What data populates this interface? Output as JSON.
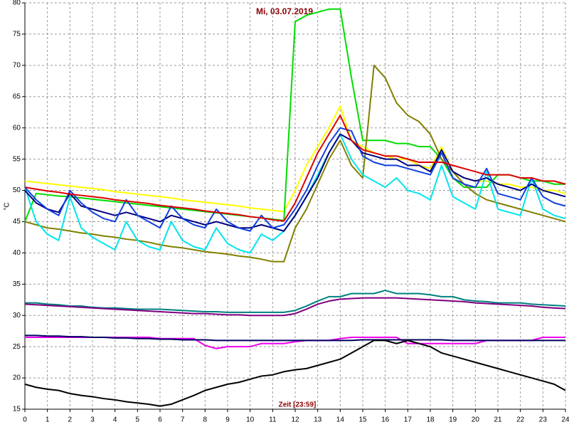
{
  "chart_data": {
    "type": "line",
    "title": "Mi, 03.07.2019",
    "y_label": "°C",
    "x_label": "Zeit [23:59]",
    "xlim": [
      0,
      24
    ],
    "xticks": [
      0,
      1,
      2,
      3,
      4,
      5,
      6,
      7,
      8,
      9,
      10,
      11,
      12,
      13,
      14,
      15,
      16,
      17,
      18,
      19,
      20,
      21,
      22,
      23,
      24
    ],
    "ylim": [
      15,
      80
    ],
    "yticks": [
      15,
      20,
      25,
      30,
      35,
      40,
      45,
      50,
      55,
      60,
      65,
      70,
      75,
      80
    ],
    "grid": true,
    "x": [
      0,
      0.5,
      1,
      1.5,
      2,
      2.5,
      3,
      3.5,
      4,
      4.5,
      5,
      5.5,
      6,
      6.5,
      7,
      7.5,
      8,
      8.5,
      9,
      9.5,
      10,
      10.5,
      11,
      11.5,
      12,
      12.5,
      13,
      13.5,
      14,
      14.5,
      15,
      15.5,
      16,
      16.5,
      17,
      17.5,
      18,
      18.5,
      19,
      19.5,
      20,
      20.5,
      21,
      21.5,
      22,
      22.5,
      23,
      23.5,
      24
    ],
    "series": [
      {
        "color": "#ffff00",
        "values": [
          51.5,
          51.3,
          51.1,
          50.9,
          50.7,
          50.5,
          50.3,
          50.1,
          49.8,
          49.6,
          49.4,
          49.2,
          49,
          48.8,
          48.5,
          48.3,
          48.1,
          47.9,
          47.7,
          47.5,
          47.2,
          47,
          46.8,
          46.6,
          50,
          54,
          57,
          60,
          63.5,
          58,
          57,
          56,
          55.5,
          55,
          55,
          54,
          53.5,
          57,
          53,
          52,
          51.5,
          51.5,
          51,
          51,
          50.5,
          50.5,
          50,
          50,
          49.5
        ]
      },
      {
        "color": "#00dd00",
        "values": [
          45,
          49.5,
          49.3,
          49.1,
          49,
          48.8,
          48.6,
          48.4,
          48.2,
          48,
          47.8,
          47.6,
          47.4,
          47.2,
          47,
          46.8,
          46.6,
          46.4,
          46.2,
          46,
          45.8,
          45.6,
          45.4,
          45.2,
          77,
          78,
          78.5,
          79,
          79,
          68,
          58,
          58,
          58,
          57.5,
          57.5,
          57,
          57,
          55,
          52,
          50.5,
          50.5,
          50.5,
          52.5,
          52.5,
          52,
          51.5,
          51.5,
          51,
          51
        ]
      },
      {
        "color": "#808000",
        "values": [
          45,
          44.5,
          44,
          43.8,
          43.5,
          43.2,
          43,
          42.7,
          42.5,
          42.2,
          42,
          41.7,
          41.3,
          41,
          40.8,
          40.5,
          40.2,
          40,
          39.8,
          39.5,
          39.3,
          39,
          38.6,
          38.6,
          44,
          47,
          51,
          55,
          58,
          54,
          52,
          70,
          68,
          64,
          62,
          61,
          59,
          55,
          53,
          51,
          49.5,
          48.5,
          48,
          47.5,
          47,
          46.5,
          46,
          45.5,
          45
        ]
      },
      {
        "color": "#00e5ee",
        "values": [
          50.5,
          45,
          43,
          42,
          49,
          44,
          42.5,
          41.5,
          40.5,
          45,
          42,
          41,
          40.5,
          45,
          42,
          41,
          40.5,
          44,
          41.5,
          40.5,
          40,
          43,
          42,
          43.5,
          46,
          49,
          52.5,
          56,
          59,
          55,
          52.5,
          51.5,
          50.5,
          52,
          50,
          49.5,
          48.5,
          54,
          49,
          48,
          47,
          53,
          47,
          46.5,
          46,
          52,
          47,
          46,
          45.5
        ]
      },
      {
        "color": "#000080",
        "values": [
          50,
          48,
          47,
          46.5,
          49.5,
          47.5,
          47,
          46.5,
          46,
          46.5,
          46,
          45.5,
          45,
          46,
          45.5,
          45,
          44.5,
          45,
          44.5,
          44,
          44,
          44.5,
          44,
          43.5,
          46,
          49,
          52,
          56,
          59,
          58,
          56,
          55.5,
          55,
          55,
          54,
          54,
          53,
          56.5,
          53,
          52,
          51.5,
          52,
          51,
          50.5,
          50,
          51,
          50,
          49.5,
          49
        ]
      },
      {
        "color": "#1040e0",
        "values": [
          50.5,
          48.5,
          47,
          46,
          50,
          48,
          46.5,
          45.5,
          45,
          48.5,
          46,
          45,
          44,
          47.5,
          45.5,
          44.5,
          44,
          47,
          45,
          44,
          43.5,
          46,
          44,
          44.5,
          47,
          50,
          54,
          57.5,
          60,
          59.5,
          55.5,
          54.5,
          54,
          54,
          53.5,
          53,
          52.5,
          56,
          52,
          51,
          50.5,
          53.5,
          49.5,
          49,
          48.5,
          52,
          49,
          48,
          47.5
        ]
      },
      {
        "color": "#dd0000",
        "values": [
          50.5,
          50.2,
          49.9,
          49.7,
          49.4,
          49.2,
          49,
          48.8,
          48.5,
          48.3,
          48.1,
          47.9,
          47.6,
          47.4,
          47.2,
          47,
          46.7,
          46.5,
          46.3,
          46.1,
          45.8,
          45.6,
          45.3,
          45.1,
          48,
          52,
          56,
          59,
          62,
          58,
          56.5,
          56,
          55.5,
          55.5,
          55,
          54.5,
          54.5,
          54.5,
          54,
          53.5,
          53,
          52.5,
          52.5,
          52.5,
          52,
          52,
          51.5,
          51.5,
          51
        ]
      },
      {
        "color": "#008080",
        "values": [
          32,
          32,
          31.8,
          31.7,
          31.5,
          31.5,
          31.3,
          31.2,
          31.2,
          31.1,
          31,
          31,
          31,
          30.9,
          30.8,
          30.7,
          30.6,
          30.6,
          30.5,
          30.5,
          30.5,
          30.5,
          30.5,
          30.5,
          30.8,
          31.5,
          32.3,
          33,
          33,
          33.5,
          33.5,
          33.5,
          34,
          33.5,
          33.5,
          33.5,
          33.3,
          33,
          33,
          32.5,
          32.3,
          32.2,
          32,
          32,
          32,
          31.8,
          31.7,
          31.6,
          31.5
        ]
      },
      {
        "color": "#800080",
        "values": [
          31.8,
          31.7,
          31.6,
          31.5,
          31.4,
          31.3,
          31.2,
          31.1,
          31,
          30.9,
          30.8,
          30.7,
          30.6,
          30.5,
          30.4,
          30.3,
          30.3,
          30.2,
          30.1,
          30.1,
          30,
          30,
          30,
          30,
          30.3,
          31,
          31.8,
          32.3,
          32.6,
          32.7,
          32.8,
          32.8,
          32.8,
          32.8,
          32.7,
          32.6,
          32.5,
          32.4,
          32.3,
          32.2,
          32,
          31.9,
          31.8,
          31.7,
          31.6,
          31.5,
          31.3,
          31.2,
          31.1
        ]
      },
      {
        "color": "#ee00ee",
        "values": [
          26.5,
          26.5,
          26.5,
          26.5,
          26.5,
          26.5,
          26.5,
          26.5,
          26.5,
          26.5,
          26.5,
          26.5,
          26.3,
          26.3,
          26.3,
          26.3,
          25.2,
          24.7,
          25,
          25,
          25,
          25.5,
          25.5,
          25.5,
          25.8,
          26,
          26,
          26,
          26.3,
          26.5,
          26.5,
          26.5,
          26.5,
          26.5,
          25.5,
          25.5,
          25.5,
          25.5,
          25.5,
          25.5,
          25.5,
          26,
          26,
          26,
          26,
          26,
          26.5,
          26.5,
          26.5
        ]
      },
      {
        "color": "#000060",
        "values": [
          26.8,
          26.8,
          26.7,
          26.7,
          26.6,
          26.6,
          26.5,
          26.5,
          26.4,
          26.4,
          26.3,
          26.3,
          26.2,
          26.2,
          26.1,
          26.1,
          26.1,
          26,
          26,
          26,
          26,
          26,
          26,
          26,
          26,
          26,
          26,
          26,
          26,
          26,
          26.1,
          26.1,
          26.1,
          26.1,
          26.1,
          26.1,
          26.1,
          26.1,
          26,
          26,
          26,
          26,
          26,
          26,
          26,
          26,
          26,
          26,
          26
        ]
      },
      {
        "color": "#000000",
        "values": [
          19,
          18.5,
          18.2,
          18,
          17.5,
          17.2,
          17,
          16.7,
          16.5,
          16.2,
          16,
          15.8,
          15.5,
          15.8,
          16.5,
          17.2,
          18,
          18.5,
          19,
          19.3,
          19.8,
          20.3,
          20.5,
          21,
          21.3,
          21.5,
          22,
          22.5,
          23,
          24,
          25,
          26,
          26,
          25.5,
          26,
          25.5,
          25,
          24,
          23.5,
          23,
          22.5,
          22,
          21.5,
          21,
          20.5,
          20,
          19.5,
          19,
          18
        ]
      }
    ]
  }
}
